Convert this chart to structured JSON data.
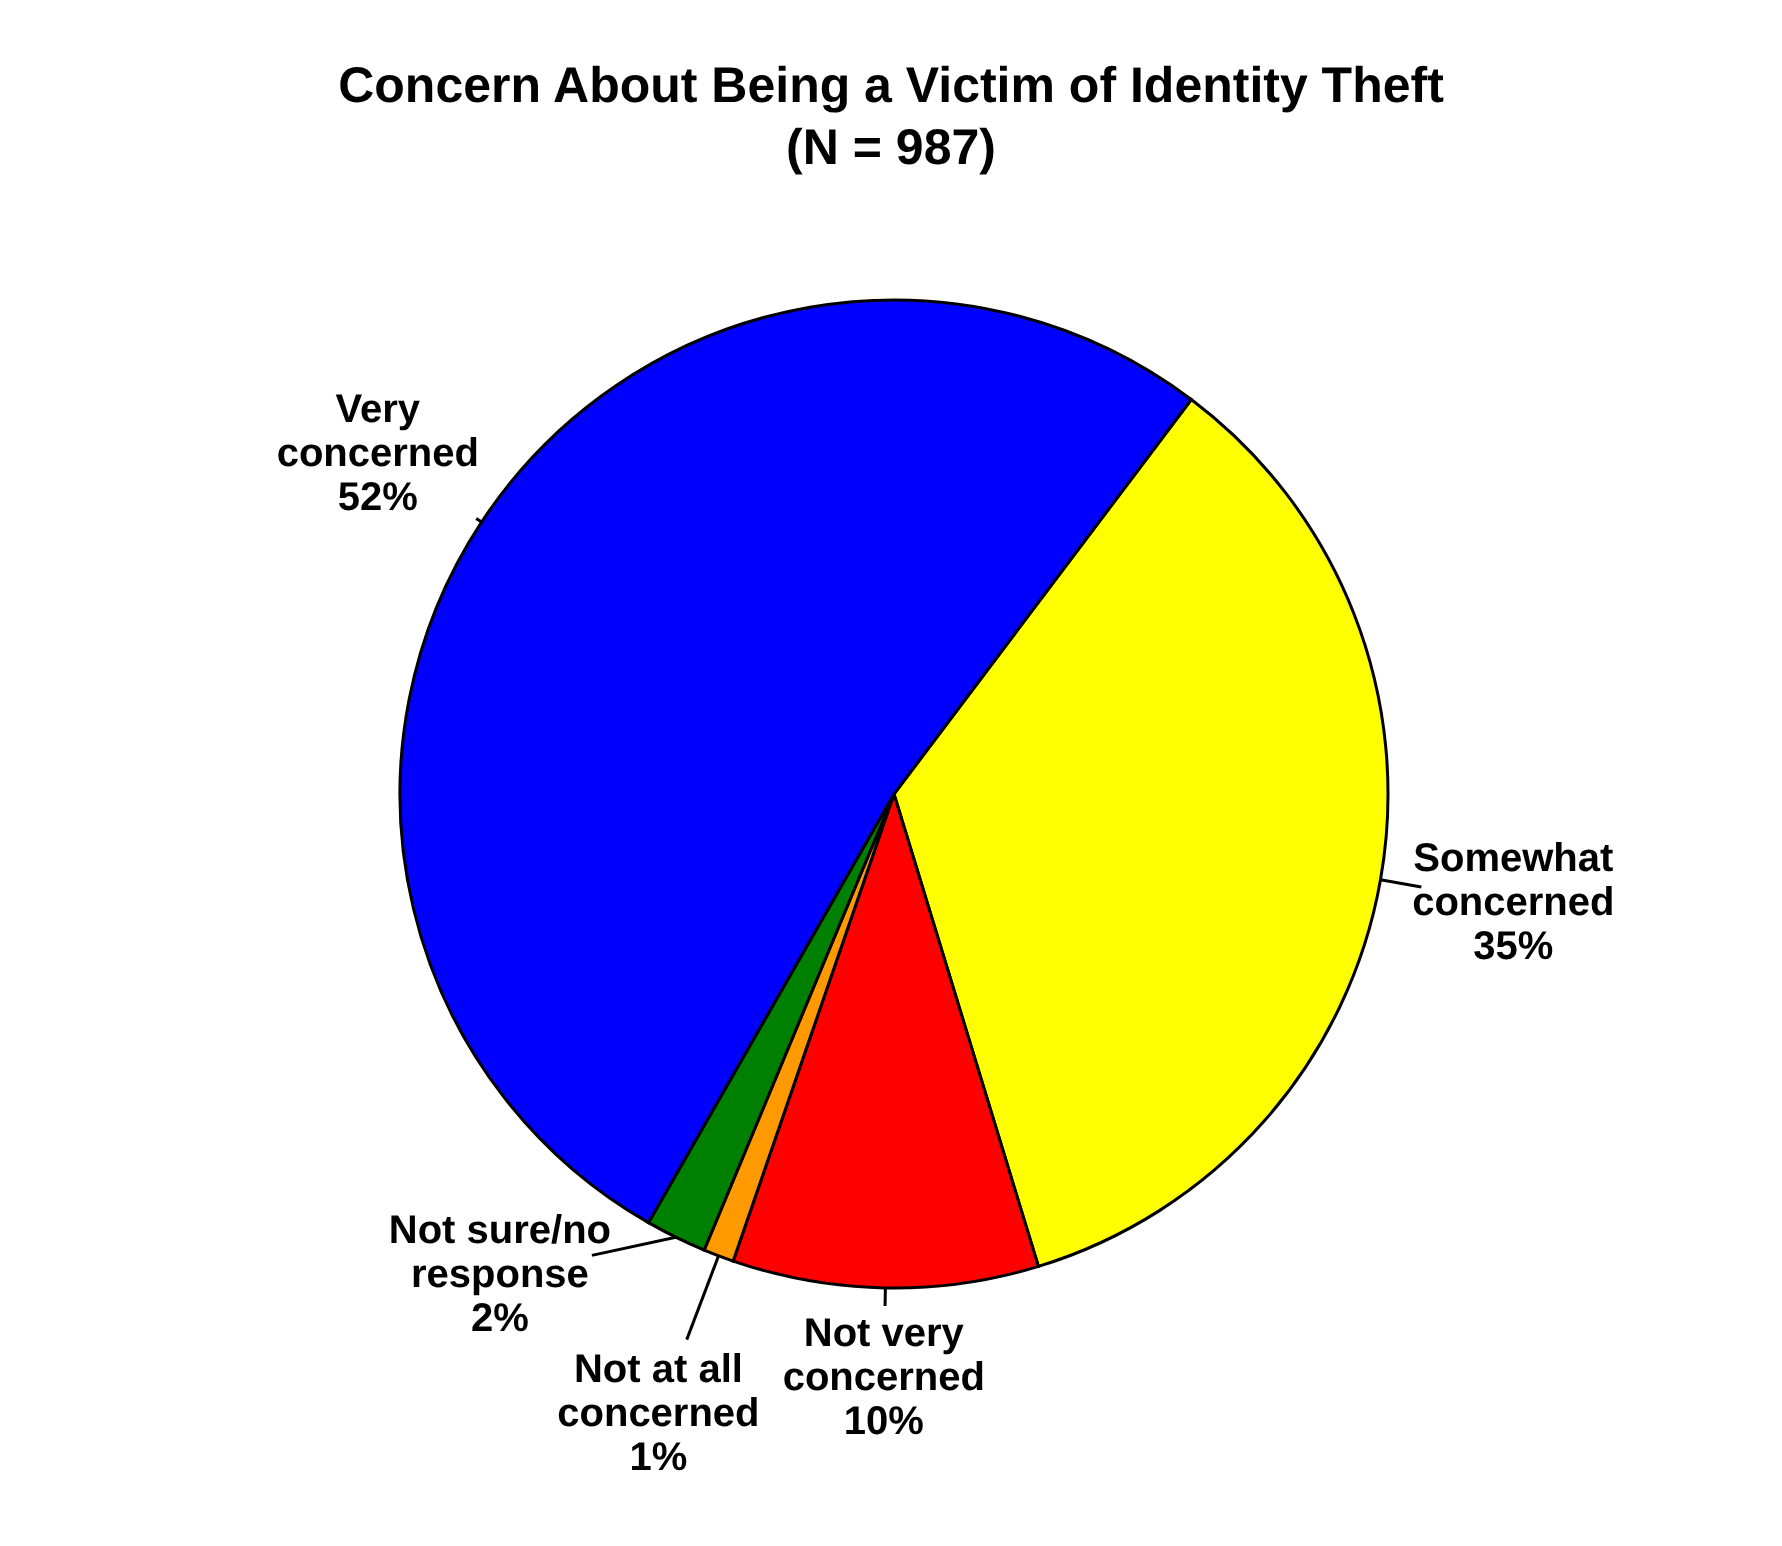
{
  "chart_data": {
    "type": "pie",
    "title": "Concern About Being a Victim of Identity Theft",
    "subtitle": "(N = 987)",
    "categories": [
      "Somewhat concerned",
      "Not very concerned",
      "Not at all concerned",
      "Not sure/no response",
      "Very concerned"
    ],
    "values": [
      35,
      10,
      1,
      2,
      52
    ],
    "value_labels": [
      "35%",
      "10%",
      "1%",
      "2%",
      "52%"
    ],
    "colors": [
      "#ffff00",
      "#ff0000",
      "#ff9900",
      "#008000",
      "#0000ff"
    ],
    "legend": false
  }
}
